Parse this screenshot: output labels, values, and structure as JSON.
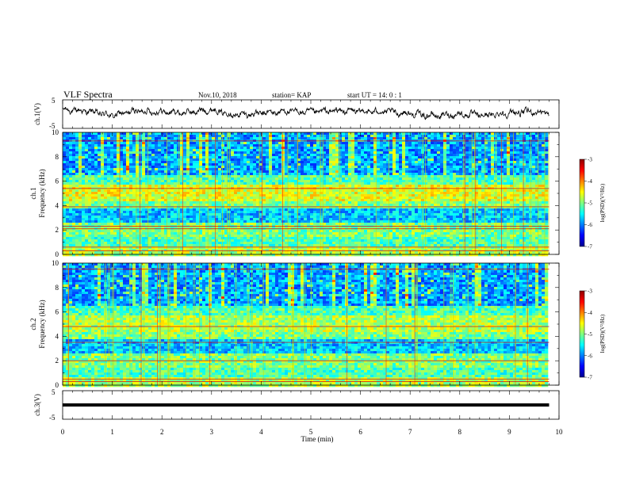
{
  "header": {
    "title": "VLF Spectra",
    "date": "Nov.10, 2018",
    "station": "station= KAP",
    "start": "start  UT =   14: 0  : 1"
  },
  "chart_data": [
    {
      "type": "line",
      "panel": "ch1-waveform",
      "ylabel": "ch.1(V)",
      "ylim": [
        -5,
        5
      ],
      "y_ticks": [
        "5",
        "-5"
      ],
      "x_range_min": [
        0,
        9.8
      ],
      "description_values": "noisy voltage trace oscillating mostly between about -1.5 and 2.5 V",
      "x": [
        0,
        0.5,
        1,
        1.5,
        2,
        2.5,
        3,
        3.5,
        4,
        4.5,
        5,
        5.5,
        6,
        6.5,
        7,
        7.5,
        8,
        8.5,
        9,
        9.5,
        9.8
      ],
      "y": [
        1.5,
        1.0,
        -0.5,
        1.2,
        0.8,
        0.5,
        1.6,
        -0.3,
        0.2,
        1.0,
        0.6,
        1.2,
        1.0,
        0.8,
        0.2,
        -0.6,
        0.0,
        -0.5,
        0.4,
        0.9,
        0.2
      ]
    },
    {
      "type": "heatmap",
      "panel": "ch1-spectrogram",
      "ylabel": "ch.1\nFrequency (kHz)",
      "ylim": [
        0,
        10
      ],
      "y_ticks": [
        "0",
        "2",
        "4",
        "6",
        "8",
        "10"
      ],
      "colorbar": {
        "label": "log(PSD)(V²/Hz)",
        "range": [
          -7,
          -3
        ],
        "ticks": [
          "-3",
          "-4",
          "-5",
          "-6",
          "-7"
        ]
      },
      "lines_khz": [
        0.3,
        0.6,
        2.1,
        2.3,
        3.9,
        5.4,
        9.3
      ]
    },
    {
      "type": "heatmap",
      "panel": "ch2-spectrogram",
      "ylabel": "ch.2\nFrequency (kHz)",
      "ylim": [
        0,
        10
      ],
      "y_ticks": [
        "0",
        "2",
        "4",
        "6",
        "8",
        "10"
      ],
      "colorbar": {
        "label": "log(PSD)(V²/Hz)",
        "range": [
          -7,
          -3
        ],
        "ticks": [
          "-3",
          "-4",
          "-5",
          "-6",
          "-7"
        ]
      },
      "lines_khz": [
        0.3,
        0.5,
        2.0,
        3.5,
        4.8,
        9.5
      ]
    },
    {
      "type": "line",
      "panel": "ch3-waveform",
      "ylabel": "ch.3(V)",
      "ylim": [
        -5,
        5
      ],
      "y_ticks": [
        "5",
        "-5"
      ],
      "x": [
        0,
        9.8
      ],
      "y": [
        0,
        0
      ]
    }
  ],
  "x_axis": {
    "label": "Time (min)",
    "range": [
      0,
      10
    ],
    "ticks": [
      "0",
      "1",
      "2",
      "3",
      "4",
      "5",
      "6",
      "7",
      "8",
      "9",
      "10"
    ]
  },
  "colors": {
    "jet_low": "#00008f",
    "jet_high": "#8f0000",
    "trace": "#000000"
  }
}
